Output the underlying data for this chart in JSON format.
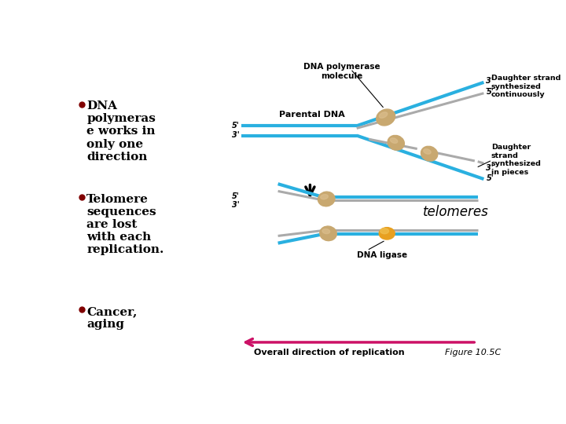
{
  "bg_color": "#ffffff",
  "bullet_color": "#800000",
  "bullet_text_color": "#000000",
  "bullets": [
    "DNA\npolymeras\ne works in\nonly one\ndirection",
    "Telomere\nsequences\nare lost\nwith each\nreplication.",
    "Cancer,\naging"
  ],
  "blue_color": "#2ab0e0",
  "gray_color": "#aaaaaa",
  "tan_color": "#c8a870",
  "tan_light": "#ddc090",
  "orange_color": "#e8a020",
  "orange_light": "#f0c050",
  "pink_color": "#cc1166",
  "lw_strand": 3.0,
  "lw_gray": 2.2,
  "label_fontsize": 7.0,
  "bullet_fontsize": 11,
  "fig_caption": "Figure 10.5C"
}
